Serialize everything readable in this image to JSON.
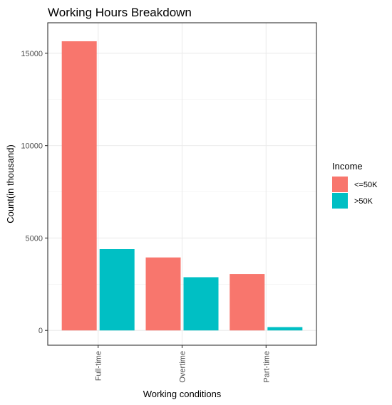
{
  "chart_data": {
    "type": "bar",
    "title": "Working Hours Breakdown",
    "xlabel": "Working conditions",
    "ylabel": "Count(in thousand)",
    "categories": [
      "Full-time",
      "Overtime",
      "Part-time"
    ],
    "series": [
      {
        "name": "<=50K",
        "color": "#F8766D",
        "values": [
          15650,
          3950,
          3050
        ]
      },
      {
        "name": ">50K",
        "color": "#00BFC4",
        "values": [
          4400,
          2880,
          180
        ]
      }
    ],
    "ylim": [
      -800,
      16650
    ],
    "yticks": [
      0,
      5000,
      10000,
      15000
    ],
    "ytick_labels": [
      "0",
      "5000",
      "10000",
      "15000"
    ],
    "grid": true,
    "legend": {
      "title": "Income",
      "position": "right"
    }
  }
}
